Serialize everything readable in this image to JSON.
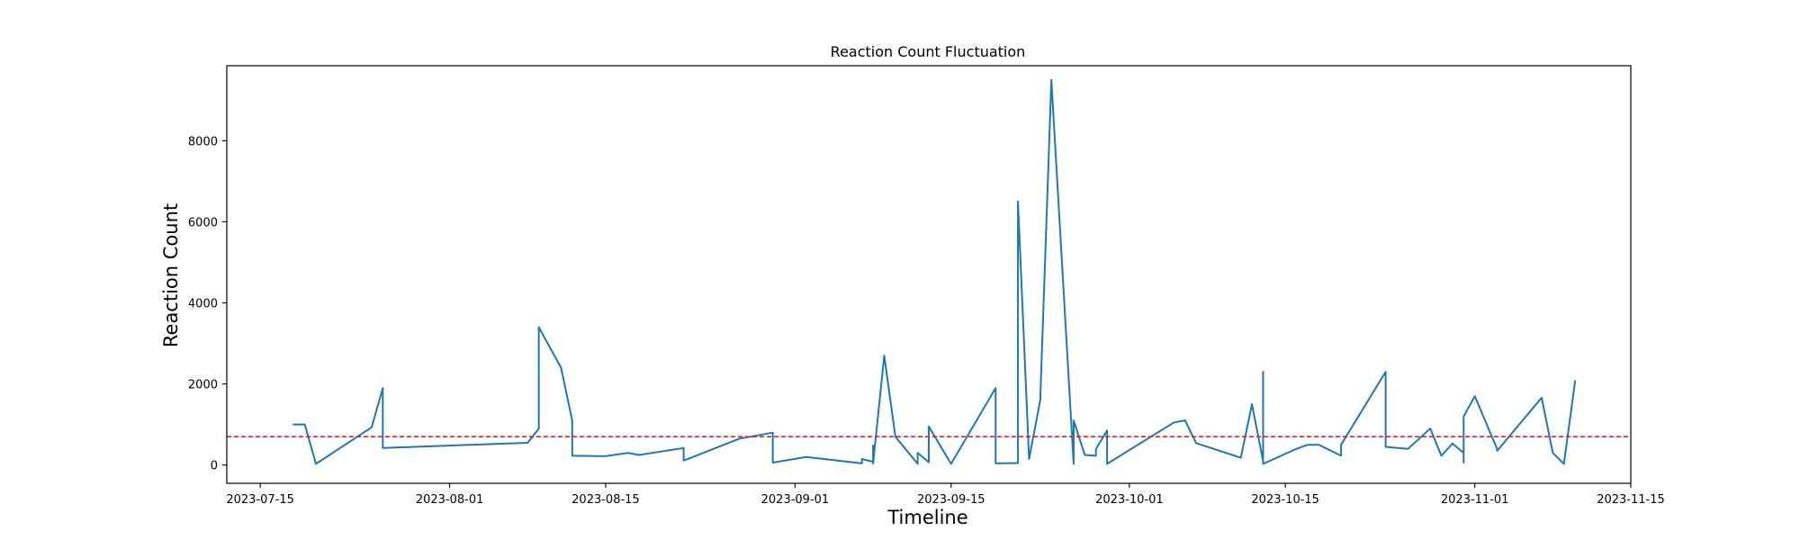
{
  "chart_data": {
    "type": "line",
    "title": "Reaction Count Fluctuation",
    "xlabel": "Timeline",
    "ylabel": "Reaction Count",
    "x_ticks": [
      "2023-07-15",
      "2023-08-01",
      "2023-08-15",
      "2023-09-01",
      "2023-09-15",
      "2023-10-01",
      "2023-10-15",
      "2023-11-01",
      "2023-11-15"
    ],
    "y_ticks": [
      0,
      2000,
      4000,
      6000,
      8000
    ],
    "xlim": [
      "2023-07-12",
      "2023-11-15"
    ],
    "ylim": [
      -450,
      9850
    ],
    "grid": false,
    "colors": {
      "line": "#1f77b4",
      "threshold": "#d62728"
    },
    "threshold": 700,
    "series": [
      {
        "x": [
          "2023-07-18",
          "2023-07-19",
          "2023-07-20",
          "2023-07-25",
          "2023-07-26",
          "2023-07-26",
          "2023-08-08",
          "2023-08-09",
          "2023-08-09",
          "2023-08-11",
          "2023-08-12",
          "2023-08-12",
          "2023-08-15",
          "2023-08-17",
          "2023-08-18",
          "2023-08-22",
          "2023-08-22",
          "2023-08-27",
          "2023-08-30",
          "2023-08-30",
          "2023-09-02",
          "2023-09-07",
          "2023-09-07",
          "2023-09-08",
          "2023-09-08",
          "2023-09-08",
          "2023-09-09",
          "2023-09-10",
          "2023-09-12",
          "2023-09-12",
          "2023-09-13",
          "2023-09-13",
          "2023-09-15",
          "2023-09-19",
          "2023-09-19",
          "2023-09-21",
          "2023-09-21",
          "2023-09-22",
          "2023-09-23",
          "2023-09-24",
          "2023-09-26",
          "2023-09-26",
          "2023-09-27",
          "2023-09-28",
          "2023-09-28",
          "2023-09-29",
          "2023-09-29",
          "2023-10-05",
          "2023-10-06",
          "2023-10-07",
          "2023-10-11",
          "2023-10-12",
          "2023-10-13",
          "2023-10-13",
          "2023-10-13",
          "2023-10-16",
          "2023-10-17",
          "2023-10-18",
          "2023-10-20",
          "2023-10-20",
          "2023-10-24",
          "2023-10-24",
          "2023-10-26",
          "2023-10-28",
          "2023-10-29",
          "2023-10-30",
          "2023-10-31",
          "2023-10-31",
          "2023-10-31",
          "2023-11-01",
          "2023-11-03",
          "2023-11-03",
          "2023-11-07",
          "2023-11-08",
          "2023-11-09",
          "2023-11-10"
        ],
        "values": [
          1000,
          1000,
          30,
          930,
          1900,
          420,
          550,
          900,
          3400,
          2400,
          1100,
          230,
          220,
          300,
          250,
          420,
          110,
          650,
          800,
          60,
          200,
          40,
          150,
          80,
          480,
          40,
          2700,
          700,
          30,
          300,
          70,
          950,
          30,
          1900,
          40,
          50,
          6500,
          150,
          1600,
          9500,
          30,
          1100,
          250,
          230,
          400,
          850,
          30,
          1050,
          1100,
          540,
          180,
          1500,
          100,
          2300,
          30,
          400,
          500,
          500,
          230,
          500,
          2300,
          450,
          400,
          900,
          230,
          530,
          300,
          60,
          1200,
          1700,
          400,
          350,
          1660,
          300,
          30,
          2070
        ]
      }
    ]
  }
}
